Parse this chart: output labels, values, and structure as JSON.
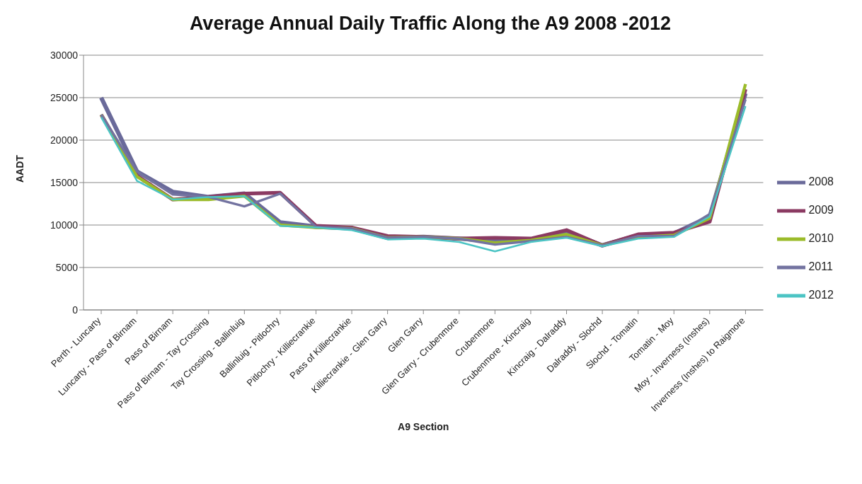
{
  "chart_data": {
    "type": "line",
    "title": "Average Annual Daily Traffic Along the A9 2008 -2012",
    "xlabel": "A9 Section",
    "ylabel": "AADT",
    "categories": [
      "Perth - Luncarty",
      "Luncarty - Pass of Birnam",
      "Pass of Birnam",
      "Pass of Birnam - Tay Crossing",
      "Tay Crossing - Ballinluig",
      "Ballinluig - Pitlochry",
      "Pitlochry - Killiecrankie",
      "Pass of Killiecrankie",
      "Killiecrankie - Glen Garry",
      "Glen Garry",
      "Glen Garry - Crubenmore",
      "Crubenmore",
      "Crubenmore - Kincraig",
      "Kincraig - Dalraddy",
      "Dalraddy - Slochd",
      "Slochd - Tomatin",
      "Tomatin - Moy",
      "Moy - Inverness (Inshes)",
      "Inverness (Inshes) to Raigmore"
    ],
    "series": [
      {
        "name": "2008",
        "color": "#6a6a9a",
        "values": [
          25000,
          16300,
          13900,
          13300,
          13700,
          10300,
          9800,
          9600,
          8500,
          8600,
          8400,
          8100,
          8300,
          9200,
          7600,
          8800,
          9000,
          11000,
          25500
        ]
      },
      {
        "name": "2009",
        "color": "#8b3a62",
        "values": [
          23000,
          15800,
          13000,
          13300,
          13700,
          13800,
          9900,
          9700,
          8700,
          8600,
          8400,
          8500,
          8400,
          9400,
          7600,
          8900,
          9100,
          10400,
          26000
        ]
      },
      {
        "name": "2010",
        "color": "#9bbb2a",
        "values": [
          23000,
          15700,
          13000,
          13000,
          13400,
          10000,
          9700,
          9600,
          8500,
          8600,
          8400,
          7900,
          8200,
          8900,
          7600,
          8600,
          8800,
          10800,
          26600
        ]
      },
      {
        "name": "2011",
        "color": "#7373a0",
        "values": [
          23000,
          16300,
          13600,
          13300,
          12200,
          13700,
          9800,
          9600,
          8500,
          8600,
          8400,
          7700,
          8100,
          8600,
          7600,
          8700,
          8700,
          11300,
          24800
        ]
      },
      {
        "name": "2012",
        "color": "#4cc4c4",
        "values": [
          22700,
          15200,
          13000,
          13300,
          13400,
          9900,
          9700,
          9400,
          8300,
          8400,
          8000,
          6900,
          8000,
          8500,
          7500,
          8400,
          8600,
          11000,
          24000
        ]
      }
    ],
    "ylim": [
      0,
      30000
    ],
    "yticks": [
      0,
      5000,
      10000,
      15000,
      20000,
      25000,
      30000
    ],
    "grid": "y",
    "legend": "right",
    "marker": "none",
    "line_style": "solid"
  }
}
